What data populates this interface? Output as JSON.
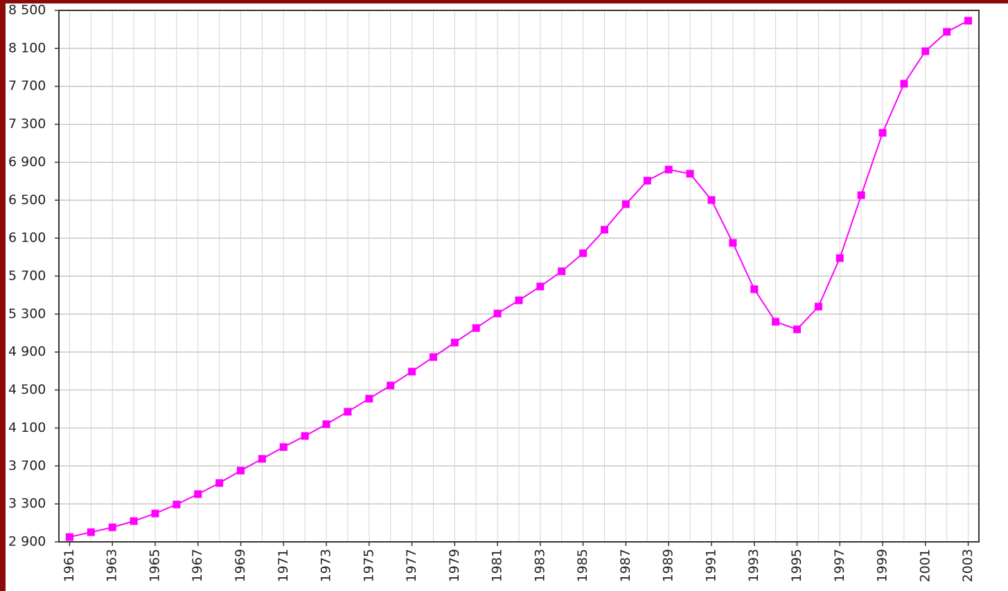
{
  "chart_data": {
    "type": "line",
    "x": [
      1961,
      1962,
      1963,
      1964,
      1965,
      1966,
      1967,
      1968,
      1969,
      1970,
      1971,
      1972,
      1973,
      1974,
      1975,
      1976,
      1977,
      1978,
      1979,
      1980,
      1981,
      1982,
      1983,
      1984,
      1985,
      1986,
      1987,
      1988,
      1989,
      1990,
      1991,
      1992,
      1993,
      1994,
      1995,
      1996,
      1997,
      1998,
      1999,
      2000,
      2001,
      2002,
      2003
    ],
    "values": [
      2951,
      3002,
      3053,
      3119,
      3199,
      3294,
      3403,
      3520,
      3651,
      3775,
      3899,
      4016,
      4140,
      4271,
      4409,
      4548,
      4694,
      4847,
      5000,
      5153,
      5306,
      5445,
      5591,
      5751,
      5941,
      6189,
      6458,
      6706,
      6823,
      6779,
      6502,
      6050,
      5562,
      5219,
      5139,
      5379,
      5890,
      6553,
      7210,
      7727,
      8070,
      8274,
      8391
    ],
    "color": "#ff00ff",
    "xlim": [
      1960.5,
      2003.5
    ],
    "xticks": [
      1961,
      1963,
      1965,
      1967,
      1969,
      1971,
      1973,
      1975,
      1977,
      1979,
      1981,
      1983,
      1985,
      1987,
      1989,
      1991,
      1993,
      1995,
      1997,
      1999,
      2001,
      2003
    ],
    "ylim": [
      2900,
      8500
    ],
    "yticks": [
      {
        "value": 2900,
        "label": "2 900"
      },
      {
        "value": 3300,
        "label": "3 300"
      },
      {
        "value": 3700,
        "label": "3 700"
      },
      {
        "value": 4100,
        "label": "4 100"
      },
      {
        "value": 4500,
        "label": "4 500"
      },
      {
        "value": 4900,
        "label": "4 900"
      },
      {
        "value": 5300,
        "label": "5 300"
      },
      {
        "value": 5700,
        "label": "5 700"
      },
      {
        "value": 6100,
        "label": "6 100"
      },
      {
        "value": 6500,
        "label": "6 500"
      },
      {
        "value": 6900,
        "label": "6 900"
      },
      {
        "value": 7300,
        "label": "7 300"
      },
      {
        "value": 7700,
        "label": "7 700"
      },
      {
        "value": 8100,
        "label": "8 100"
      },
      {
        "value": 8500,
        "label": "8 500"
      }
    ],
    "grid": true
  }
}
